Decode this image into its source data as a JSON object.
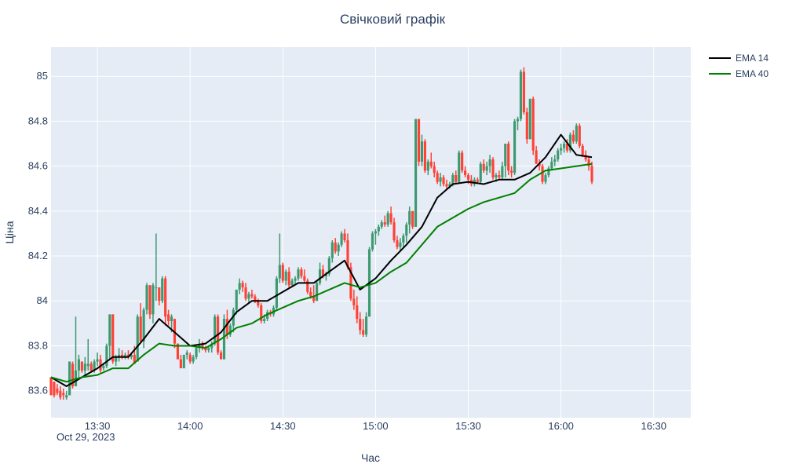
{
  "chart_data": {
    "type": "candlestick",
    "title": "Свічковий графік",
    "xlabel": "Час",
    "ylabel": "Ціна",
    "date_label": "Oct 29, 2023",
    "x_range": [
      "13:15",
      "16:42"
    ],
    "ylim": [
      83.48,
      85.13
    ],
    "y_ticks": [
      83.6,
      83.8,
      84,
      84.2,
      84.4,
      84.6,
      84.8,
      85
    ],
    "x_ticks": [
      "13:30",
      "14:00",
      "14:30",
      "15:00",
      "15:30",
      "16:00",
      "16:30"
    ],
    "grid": true,
    "legend_position": "top-right",
    "colors": {
      "increasing": "#3d9970",
      "decreasing": "#ff4136",
      "ema14": "#000000",
      "ema40": "#008000",
      "plot_bg": "#e5ecf6",
      "grid": "#ffffff"
    },
    "candles": [
      [
        "13:15",
        83.66,
        83.66,
        83.58,
        83.58
      ],
      [
        "13:16",
        83.64,
        83.64,
        83.57,
        83.58
      ],
      [
        "13:17",
        83.61,
        83.63,
        83.58,
        83.59
      ],
      [
        "13:18",
        83.6,
        83.62,
        83.56,
        83.57
      ],
      [
        "13:19",
        83.59,
        83.61,
        83.56,
        83.58
      ],
      [
        "13:20",
        83.57,
        83.6,
        83.56,
        83.58
      ],
      [
        "13:21",
        83.58,
        83.73,
        83.58,
        83.73
      ],
      [
        "13:22",
        83.72,
        83.73,
        83.61,
        83.62
      ],
      [
        "13:23",
        83.62,
        83.93,
        83.62,
        83.69
      ],
      [
        "13:24",
        83.69,
        83.76,
        83.66,
        83.74
      ],
      [
        "13:25",
        83.73,
        83.73,
        83.68,
        83.69
      ],
      [
        "13:26",
        83.69,
        83.75,
        83.66,
        83.72
      ],
      [
        "13:27",
        83.71,
        83.83,
        83.69,
        83.72
      ],
      [
        "13:28",
        83.72,
        83.73,
        83.68,
        83.69
      ],
      [
        "13:29",
        83.69,
        83.74,
        83.68,
        83.73
      ],
      [
        "13:30",
        83.73,
        83.77,
        83.71,
        83.74
      ],
      [
        "13:31",
        83.74,
        83.76,
        83.68,
        83.69
      ],
      [
        "13:32",
        83.7,
        83.72,
        83.69,
        83.71
      ],
      [
        "13:33",
        83.71,
        83.81,
        83.7,
        83.8
      ],
      [
        "13:34",
        83.8,
        83.94,
        83.74,
        83.94
      ],
      [
        "13:35",
        83.94,
        83.94,
        83.72,
        83.73
      ],
      [
        "13:36",
        83.73,
        83.76,
        83.71,
        83.75
      ],
      [
        "13:37",
        83.75,
        83.79,
        83.73,
        83.76
      ],
      [
        "13:38",
        83.76,
        83.78,
        83.74,
        83.75
      ],
      [
        "13:39",
        83.75,
        83.77,
        83.74,
        83.76
      ],
      [
        "13:40",
        83.76,
        83.78,
        83.74,
        83.75
      ],
      [
        "13:41",
        83.75,
        83.77,
        83.74,
        83.76
      ],
      [
        "13:42",
        83.76,
        83.8,
        83.72,
        83.72
      ],
      [
        "13:43",
        83.73,
        83.94,
        83.73,
        83.93
      ],
      [
        "13:44",
        83.93,
        83.99,
        83.81,
        83.82
      ],
      [
        "13:45",
        83.82,
        83.97,
        83.79,
        83.96
      ],
      [
        "13:46",
        83.96,
        84.08,
        83.94,
        84.07
      ],
      [
        "13:47",
        84.07,
        84.07,
        83.92,
        83.94
      ],
      [
        "13:48",
        83.94,
        84.08,
        83.9,
        84.07
      ],
      [
        "13:49",
        84.06,
        84.3,
        84.0,
        84.06
      ],
      [
        "13:50",
        84.06,
        84.06,
        83.98,
        84.0
      ],
      [
        "13:51",
        84.0,
        84.11,
        83.99,
        84.1
      ],
      [
        "13:52",
        84.1,
        84.11,
        83.89,
        83.93
      ],
      [
        "13:53",
        83.94,
        83.96,
        83.89,
        83.91
      ],
      [
        "13:54",
        83.91,
        83.94,
        83.86,
        83.93
      ],
      [
        "13:55",
        83.92,
        83.92,
        83.79,
        83.81
      ],
      [
        "13:56",
        83.81,
        83.81,
        83.74,
        83.74
      ],
      [
        "13:57",
        83.74,
        83.76,
        83.7,
        83.7
      ],
      [
        "13:58",
        83.7,
        83.76,
        83.7,
        83.76
      ],
      [
        "13:59",
        83.76,
        83.78,
        83.74,
        83.77
      ],
      [
        "14:00",
        83.76,
        83.77,
        83.72,
        83.73
      ],
      [
        "14:01",
        83.73,
        83.76,
        83.72,
        83.75
      ],
      [
        "14:02",
        83.75,
        83.8,
        83.74,
        83.79
      ],
      [
        "14:03",
        83.79,
        83.83,
        83.77,
        83.81
      ],
      [
        "14:04",
        83.81,
        83.82,
        83.78,
        83.79
      ],
      [
        "14:05",
        83.79,
        83.8,
        83.77,
        83.78
      ],
      [
        "14:06",
        83.78,
        83.8,
        83.77,
        83.79
      ],
      [
        "14:07",
        83.79,
        83.82,
        83.77,
        83.81
      ],
      [
        "14:08",
        83.81,
        83.94,
        83.8,
        83.93
      ],
      [
        "14:09",
        83.93,
        83.94,
        83.76,
        83.77
      ],
      [
        "14:10",
        83.77,
        83.78,
        83.74,
        83.74
      ],
      [
        "14:11",
        83.74,
        83.94,
        83.74,
        83.92
      ],
      [
        "14:12",
        83.92,
        83.96,
        83.83,
        83.85
      ],
      [
        "14:13",
        83.85,
        83.9,
        83.84,
        83.89
      ],
      [
        "14:14",
        83.89,
        83.97,
        83.86,
        83.96
      ],
      [
        "14:15",
        83.96,
        84.05,
        83.94,
        84.05
      ],
      [
        "14:16",
        84.05,
        84.1,
        84.03,
        84.08
      ],
      [
        "14:17",
        84.08,
        84.09,
        84.04,
        84.06
      ],
      [
        "14:18",
        84.06,
        84.08,
        84.0,
        84.01
      ],
      [
        "14:19",
        84.01,
        84.04,
        83.99,
        84.03
      ],
      [
        "14:20",
        84.03,
        84.05,
        84.01,
        84.02
      ],
      [
        "14:21",
        84.02,
        84.03,
        83.99,
        84.0
      ],
      [
        "14:22",
        84.0,
        84.01,
        83.97,
        83.98
      ],
      [
        "14:23",
        83.98,
        83.99,
        83.9,
        83.91
      ],
      [
        "14:24",
        83.91,
        83.94,
        83.9,
        83.92
      ],
      [
        "14:25",
        83.92,
        83.96,
        83.91,
        83.95
      ],
      [
        "14:26",
        83.95,
        83.96,
        83.93,
        83.94
      ],
      [
        "14:27",
        83.94,
        83.98,
        83.93,
        83.97
      ],
      [
        "14:28",
        83.97,
        84.11,
        83.96,
        84.1
      ],
      [
        "14:29",
        84.1,
        84.3,
        84.08,
        84.16
      ],
      [
        "14:30",
        84.16,
        84.17,
        84.08,
        84.09
      ],
      [
        "14:31",
        84.09,
        84.14,
        84.07,
        84.13
      ],
      [
        "14:32",
        84.13,
        84.15,
        84.06,
        84.07
      ],
      [
        "14:33",
        84.07,
        84.1,
        84.06,
        84.09
      ],
      [
        "14:34",
        84.09,
        84.11,
        84.07,
        84.1
      ],
      [
        "14:35",
        84.1,
        84.15,
        84.09,
        84.14
      ],
      [
        "14:36",
        84.14,
        84.15,
        84.1,
        84.11
      ],
      [
        "14:37",
        84.11,
        84.14,
        84.08,
        84.09
      ],
      [
        "14:38",
        84.09,
        84.1,
        84.03,
        84.04
      ],
      [
        "14:39",
        84.04,
        84.06,
        84.01,
        84.02
      ],
      [
        "14:40",
        84.02,
        84.07,
        83.99,
        84.0
      ],
      [
        "14:41",
        84.0,
        84.09,
        84.0,
        84.08
      ],
      [
        "14:42",
        84.08,
        84.17,
        84.07,
        84.14
      ],
      [
        "14:43",
        84.14,
        84.16,
        84.1,
        84.11
      ],
      [
        "14:44",
        84.11,
        84.13,
        84.09,
        84.12
      ],
      [
        "14:45",
        84.12,
        84.2,
        84.11,
        84.19
      ],
      [
        "14:46",
        84.19,
        84.27,
        84.17,
        84.26
      ],
      [
        "14:47",
        84.26,
        84.28,
        84.21,
        84.22
      ],
      [
        "14:48",
        84.22,
        84.26,
        84.2,
        84.25
      ],
      [
        "14:49",
        84.25,
        84.31,
        84.24,
        84.3
      ],
      [
        "14:50",
        84.3,
        84.32,
        84.26,
        84.27
      ],
      [
        "14:51",
        84.27,
        84.3,
        84.14,
        84.15
      ],
      [
        "14:52",
        84.15,
        84.17,
        84.0,
        84.01
      ],
      [
        "14:53",
        84.01,
        84.05,
        83.96,
        83.98
      ],
      [
        "14:54",
        83.98,
        84.02,
        83.9,
        83.92
      ],
      [
        "14:55",
        83.92,
        83.95,
        83.85,
        83.87
      ],
      [
        "14:56",
        83.87,
        83.92,
        83.84,
        83.85
      ],
      [
        "14:57",
        83.85,
        83.95,
        83.84,
        83.93
      ],
      [
        "14:58",
        83.93,
        84.24,
        83.93,
        84.23
      ],
      [
        "14:59",
        84.23,
        84.31,
        84.22,
        84.3
      ],
      [
        "15:00",
        84.3,
        84.32,
        84.25,
        84.31
      ],
      [
        "15:01",
        84.31,
        84.34,
        84.29,
        84.33
      ],
      [
        "15:02",
        84.33,
        84.36,
        84.32,
        84.35
      ],
      [
        "15:03",
        84.35,
        84.38,
        84.33,
        84.34
      ],
      [
        "15:04",
        84.34,
        84.4,
        84.33,
        84.39
      ],
      [
        "15:05",
        84.39,
        84.42,
        84.34,
        84.35
      ],
      [
        "15:06",
        84.35,
        84.37,
        84.26,
        84.27
      ],
      [
        "15:07",
        84.27,
        84.29,
        84.23,
        84.24
      ],
      [
        "15:08",
        84.24,
        84.28,
        84.22,
        84.26
      ],
      [
        "15:09",
        84.26,
        84.3,
        84.24,
        84.29
      ],
      [
        "15:10",
        84.29,
        84.35,
        84.26,
        84.34
      ],
      [
        "15:11",
        84.34,
        84.42,
        84.3,
        84.4
      ],
      [
        "15:12",
        84.4,
        84.4,
        84.32,
        84.33
      ],
      [
        "15:13",
        84.33,
        84.81,
        84.33,
        84.81
      ],
      [
        "15:14",
        84.81,
        84.81,
        84.6,
        84.62
      ],
      [
        "15:15",
        84.62,
        84.74,
        84.6,
        84.71
      ],
      [
        "15:16",
        84.71,
        84.72,
        84.57,
        84.58
      ],
      [
        "15:17",
        84.58,
        84.63,
        84.56,
        84.62
      ],
      [
        "15:18",
        84.62,
        84.66,
        84.59,
        84.6
      ],
      [
        "15:19",
        84.6,
        84.62,
        84.55,
        84.57
      ],
      [
        "15:20",
        84.57,
        84.58,
        84.52,
        84.53
      ],
      [
        "15:21",
        84.53,
        84.57,
        84.51,
        84.55
      ],
      [
        "15:22",
        84.55,
        84.56,
        84.51,
        84.52
      ],
      [
        "15:23",
        84.52,
        84.54,
        84.5,
        84.51
      ],
      [
        "15:24",
        84.51,
        84.53,
        84.5,
        84.52
      ],
      [
        "15:25",
        84.52,
        84.57,
        84.51,
        84.56
      ],
      [
        "15:26",
        84.56,
        84.58,
        84.52,
        84.53
      ],
      [
        "15:27",
        84.53,
        84.67,
        84.52,
        84.66
      ],
      [
        "15:28",
        84.66,
        84.67,
        84.57,
        84.58
      ],
      [
        "15:29",
        84.58,
        84.6,
        84.55,
        84.56
      ],
      [
        "15:30",
        84.56,
        84.57,
        84.52,
        84.54
      ],
      [
        "15:31",
        84.54,
        84.56,
        84.51,
        84.52
      ],
      [
        "15:32",
        84.52,
        84.55,
        84.51,
        84.54
      ],
      [
        "15:33",
        84.54,
        84.55,
        84.52,
        84.53
      ],
      [
        "15:34",
        84.53,
        84.62,
        84.52,
        84.61
      ],
      [
        "15:35",
        84.61,
        84.63,
        84.57,
        84.58
      ],
      [
        "15:36",
        84.58,
        84.62,
        84.56,
        84.6
      ],
      [
        "15:37",
        84.6,
        84.65,
        84.57,
        84.63
      ],
      [
        "15:38",
        84.63,
        84.64,
        84.54,
        84.55
      ],
      [
        "15:39",
        84.55,
        84.57,
        84.53,
        84.56
      ],
      [
        "15:40",
        84.56,
        84.58,
        84.54,
        84.55
      ],
      [
        "15:41",
        84.55,
        84.62,
        84.54,
        84.6
      ],
      [
        "15:42",
        84.6,
        84.7,
        84.55,
        84.7
      ],
      [
        "15:43",
        84.7,
        84.71,
        84.56,
        84.58
      ],
      [
        "15:44",
        84.58,
        84.6,
        84.55,
        84.57
      ],
      [
        "15:45",
        84.57,
        84.81,
        84.56,
        84.8
      ],
      [
        "15:46",
        84.8,
        84.82,
        84.76,
        84.81
      ],
      [
        "15:47",
        84.81,
        85.03,
        84.8,
        85.02
      ],
      [
        "15:48",
        85.02,
        85.04,
        84.83,
        84.84
      ],
      [
        "15:49",
        84.84,
        84.86,
        84.7,
        84.72
      ],
      [
        "15:50",
        84.72,
        84.9,
        84.72,
        84.9
      ],
      [
        "15:51",
        84.9,
        84.91,
        84.65,
        84.67
      ],
      [
        "15:52",
        84.67,
        84.69,
        84.61,
        84.61
      ],
      [
        "15:53",
        84.61,
        84.63,
        84.58,
        84.6
      ],
      [
        "15:54",
        84.6,
        84.61,
        84.52,
        84.53
      ],
      [
        "15:55",
        84.53,
        84.57,
        84.52,
        84.56
      ],
      [
        "15:56",
        84.56,
        84.6,
        84.55,
        84.59
      ],
      [
        "15:57",
        84.59,
        84.64,
        84.58,
        84.62
      ],
      [
        "15:58",
        84.62,
        84.65,
        84.6,
        84.63
      ],
      [
        "15:59",
        84.63,
        84.68,
        84.62,
        84.67
      ],
      [
        "16:00",
        84.67,
        84.7,
        84.65,
        84.68
      ],
      [
        "16:01",
        84.68,
        84.71,
        84.66,
        84.7
      ],
      [
        "16:02",
        84.7,
        84.72,
        84.66,
        84.67
      ],
      [
        "16:03",
        84.67,
        84.75,
        84.66,
        84.74
      ],
      [
        "16:04",
        84.74,
        84.76,
        84.7,
        84.71
      ],
      [
        "16:05",
        84.71,
        84.79,
        84.7,
        84.78
      ],
      [
        "16:06",
        84.78,
        84.79,
        84.68,
        84.69
      ],
      [
        "16:07",
        84.69,
        84.7,
        84.64,
        84.65
      ],
      [
        "16:08",
        84.65,
        84.67,
        84.62,
        84.63
      ],
      [
        "16:09",
        84.63,
        84.64,
        84.58,
        84.6
      ],
      [
        "16:10",
        84.6,
        84.62,
        84.52,
        84.53
      ]
    ],
    "series": [
      {
        "name": "EMA 14",
        "x": [
          "13:15",
          "13:20",
          "13:25",
          "13:30",
          "13:35",
          "13:40",
          "13:45",
          "13:50",
          "13:55",
          "14:00",
          "14:05",
          "14:10",
          "14:15",
          "14:20",
          "14:25",
          "14:30",
          "14:35",
          "14:40",
          "14:45",
          "14:50",
          "14:55",
          "15:00",
          "15:05",
          "15:10",
          "15:15",
          "15:20",
          "15:25",
          "15:30",
          "15:35",
          "15:40",
          "15:45",
          "15:50",
          "15:55",
          "16:00",
          "16:05",
          "16:10"
        ],
        "values": [
          83.66,
          83.62,
          83.66,
          83.7,
          83.75,
          83.75,
          83.83,
          83.92,
          83.86,
          83.8,
          83.81,
          83.86,
          83.95,
          84.0,
          84.0,
          84.04,
          84.08,
          84.08,
          84.13,
          84.18,
          84.05,
          84.1,
          84.18,
          84.25,
          84.33,
          84.46,
          84.52,
          84.53,
          84.52,
          84.54,
          84.54,
          84.57,
          84.64,
          84.74,
          84.65,
          84.64
        ]
      },
      {
        "name": "EMA 40",
        "x": [
          "13:15",
          "13:20",
          "13:25",
          "13:30",
          "13:35",
          "13:40",
          "13:45",
          "13:50",
          "13:55",
          "14:00",
          "14:05",
          "14:10",
          "14:15",
          "14:20",
          "14:25",
          "14:30",
          "14:35",
          "14:40",
          "14:45",
          "14:50",
          "14:55",
          "15:00",
          "15:05",
          "15:10",
          "15:15",
          "15:20",
          "15:25",
          "15:30",
          "15:35",
          "15:40",
          "15:45",
          "15:50",
          "15:55",
          "16:00",
          "16:05",
          "16:10"
        ],
        "values": [
          83.66,
          83.64,
          83.66,
          83.67,
          83.7,
          83.7,
          83.76,
          83.81,
          83.8,
          83.8,
          83.79,
          83.83,
          83.88,
          83.9,
          83.94,
          83.97,
          84.0,
          84.02,
          84.05,
          84.08,
          84.06,
          84.08,
          84.13,
          84.17,
          84.25,
          84.33,
          84.37,
          84.41,
          84.44,
          84.46,
          84.48,
          84.54,
          84.58,
          84.59,
          84.6,
          84.61
        ]
      }
    ]
  }
}
